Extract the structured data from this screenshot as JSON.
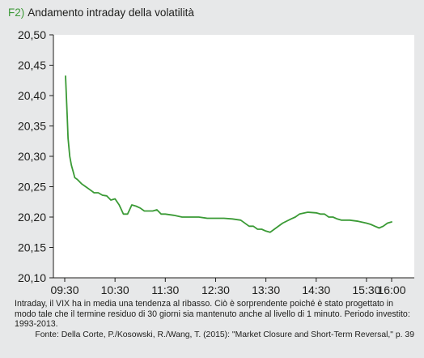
{
  "figure": {
    "label": "F2)",
    "title": "Andamento intraday della volatilità",
    "note": "Intraday, il VIX ha in media una tendenza al ribasso. Ciò è sorprendente poiché è stato progettato in modo tale che il termine residuo di 30 giorni sia mantenuto anche al livello di 1 minuto. Periodo investito: 1993-2013.",
    "source": "Fonte: Della Corte, P./Kosowski, R./Wang, T. (2015): \"Market Closure and Short-Term Reversal,\" p. 39"
  },
  "colors": {
    "line": "#3a9a35",
    "panel": "#e7e8e9",
    "axis": "#1d1d1b"
  },
  "chart_data": {
    "type": "line",
    "title": "Andamento intraday della volatilità",
    "xlabel": "",
    "ylabel": "",
    "ylim": [
      20.1,
      20.5
    ],
    "y_ticks": [
      "20,10",
      "20,15",
      "20,20",
      "20,25",
      "20,30",
      "20,35",
      "20,40",
      "20,45",
      "20,50"
    ],
    "x_ticks": [
      "09:30",
      "10:30",
      "11:30",
      "12:30",
      "13:30",
      "14:30",
      "15:30",
      "16:00"
    ],
    "grid": false,
    "series": [
      {
        "x": [
          "09:31",
          "09:33",
          "09:34",
          "09:36",
          "09:38",
          "09:40",
          "09:42",
          "09:45",
          "09:50",
          "09:55",
          "10:00",
          "10:05",
          "10:10",
          "10:15",
          "10:20",
          "10:25",
          "10:30",
          "10:35",
          "10:40",
          "10:45",
          "10:50",
          "10:55",
          "11:00",
          "11:05",
          "11:10",
          "11:15",
          "11:20",
          "11:25",
          "11:30",
          "11:40",
          "11:50",
          "12:00",
          "12:10",
          "12:20",
          "12:30",
          "12:40",
          "12:50",
          "13:00",
          "13:10",
          "13:15",
          "13:20",
          "13:25",
          "13:30",
          "13:35",
          "13:40",
          "13:50",
          "14:00",
          "14:05",
          "14:10",
          "14:20",
          "14:30",
          "14:35",
          "14:40",
          "14:45",
          "14:50",
          "14:55",
          "15:00",
          "15:10",
          "15:20",
          "15:30",
          "15:35",
          "15:40",
          "15:45",
          "15:50",
          "15:55",
          "16:00"
        ],
        "values": [
          20.432,
          20.365,
          20.33,
          20.3,
          20.285,
          20.275,
          20.265,
          20.262,
          20.255,
          20.25,
          20.245,
          20.24,
          20.24,
          20.236,
          20.235,
          20.228,
          20.23,
          20.22,
          20.205,
          20.205,
          20.22,
          20.218,
          20.215,
          20.21,
          20.21,
          20.21,
          20.212,
          20.205,
          20.205,
          20.203,
          20.2,
          20.2,
          20.2,
          20.198,
          20.198,
          20.198,
          20.197,
          20.195,
          20.185,
          20.185,
          20.18,
          20.18,
          20.177,
          20.175,
          20.18,
          20.19,
          20.197,
          20.2,
          20.205,
          20.208,
          20.207,
          20.205,
          20.205,
          20.2,
          20.2,
          20.197,
          20.195,
          20.195,
          20.193,
          20.19,
          20.188,
          20.185,
          20.182,
          20.185,
          20.19,
          20.192
        ]
      }
    ]
  }
}
